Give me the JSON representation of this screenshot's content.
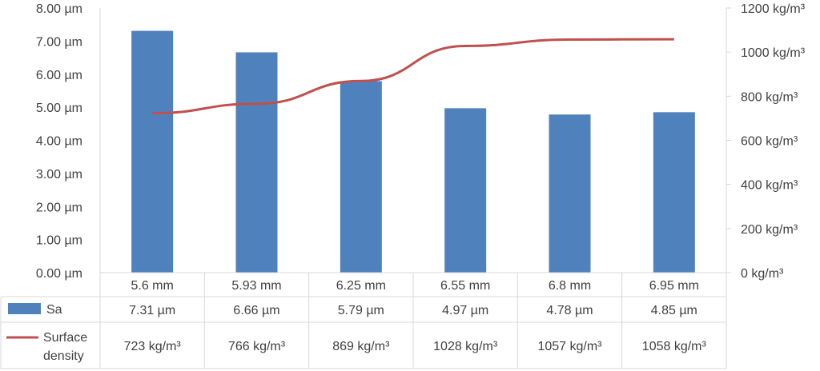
{
  "chart_data": {
    "type": "bar",
    "categories": [
      "5.6 mm",
      "5.93 mm",
      "6.25 mm",
      "6.55 mm",
      "6.8 mm",
      "6.95 mm"
    ],
    "series": [
      {
        "name": "Sa",
        "kind": "bar",
        "axis": "left",
        "color": "#4f81bd",
        "values": [
          7.31,
          6.66,
          5.79,
          4.97,
          4.78,
          4.85
        ],
        "labels": [
          "7.31 µm",
          "6.66 µm",
          "5.79 µm",
          "4.97 µm",
          "4.78 µm",
          "4.85 µm"
        ]
      },
      {
        "name": "Surface density",
        "name_lines": [
          "Surface",
          "density"
        ],
        "kind": "line",
        "axis": "right",
        "color": "#c0504d",
        "values": [
          723,
          766,
          869,
          1028,
          1057,
          1058
        ],
        "labels": [
          "723 kg/m³",
          "766 kg/m³",
          "869 kg/m³",
          "1028 kg/m³",
          "1057 kg/m³",
          "1058 kg/m³"
        ]
      }
    ],
    "y_left": {
      "ylim": [
        0,
        8
      ],
      "ticks": [
        0,
        1,
        2,
        3,
        4,
        5,
        6,
        7,
        8
      ],
      "tick_labels": [
        "0.00 µm",
        "1.00 µm",
        "2.00 µm",
        "3.00 µm",
        "4.00 µm",
        "5.00 µm",
        "6.00 µm",
        "7.00 µm",
        "8.00 µm"
      ]
    },
    "y_right": {
      "ylim": [
        0,
        1200
      ],
      "ticks": [
        0,
        200,
        400,
        600,
        800,
        1000,
        1200
      ],
      "tick_labels": [
        "0 kg/m³",
        "200 kg/m³",
        "400 kg/m³",
        "600 kg/m³",
        "800 kg/m³",
        "1000 kg/m³",
        "1200 kg/m³"
      ]
    },
    "data_table": true,
    "grid": false,
    "title": "",
    "xlabel": "",
    "ylabel": ""
  }
}
